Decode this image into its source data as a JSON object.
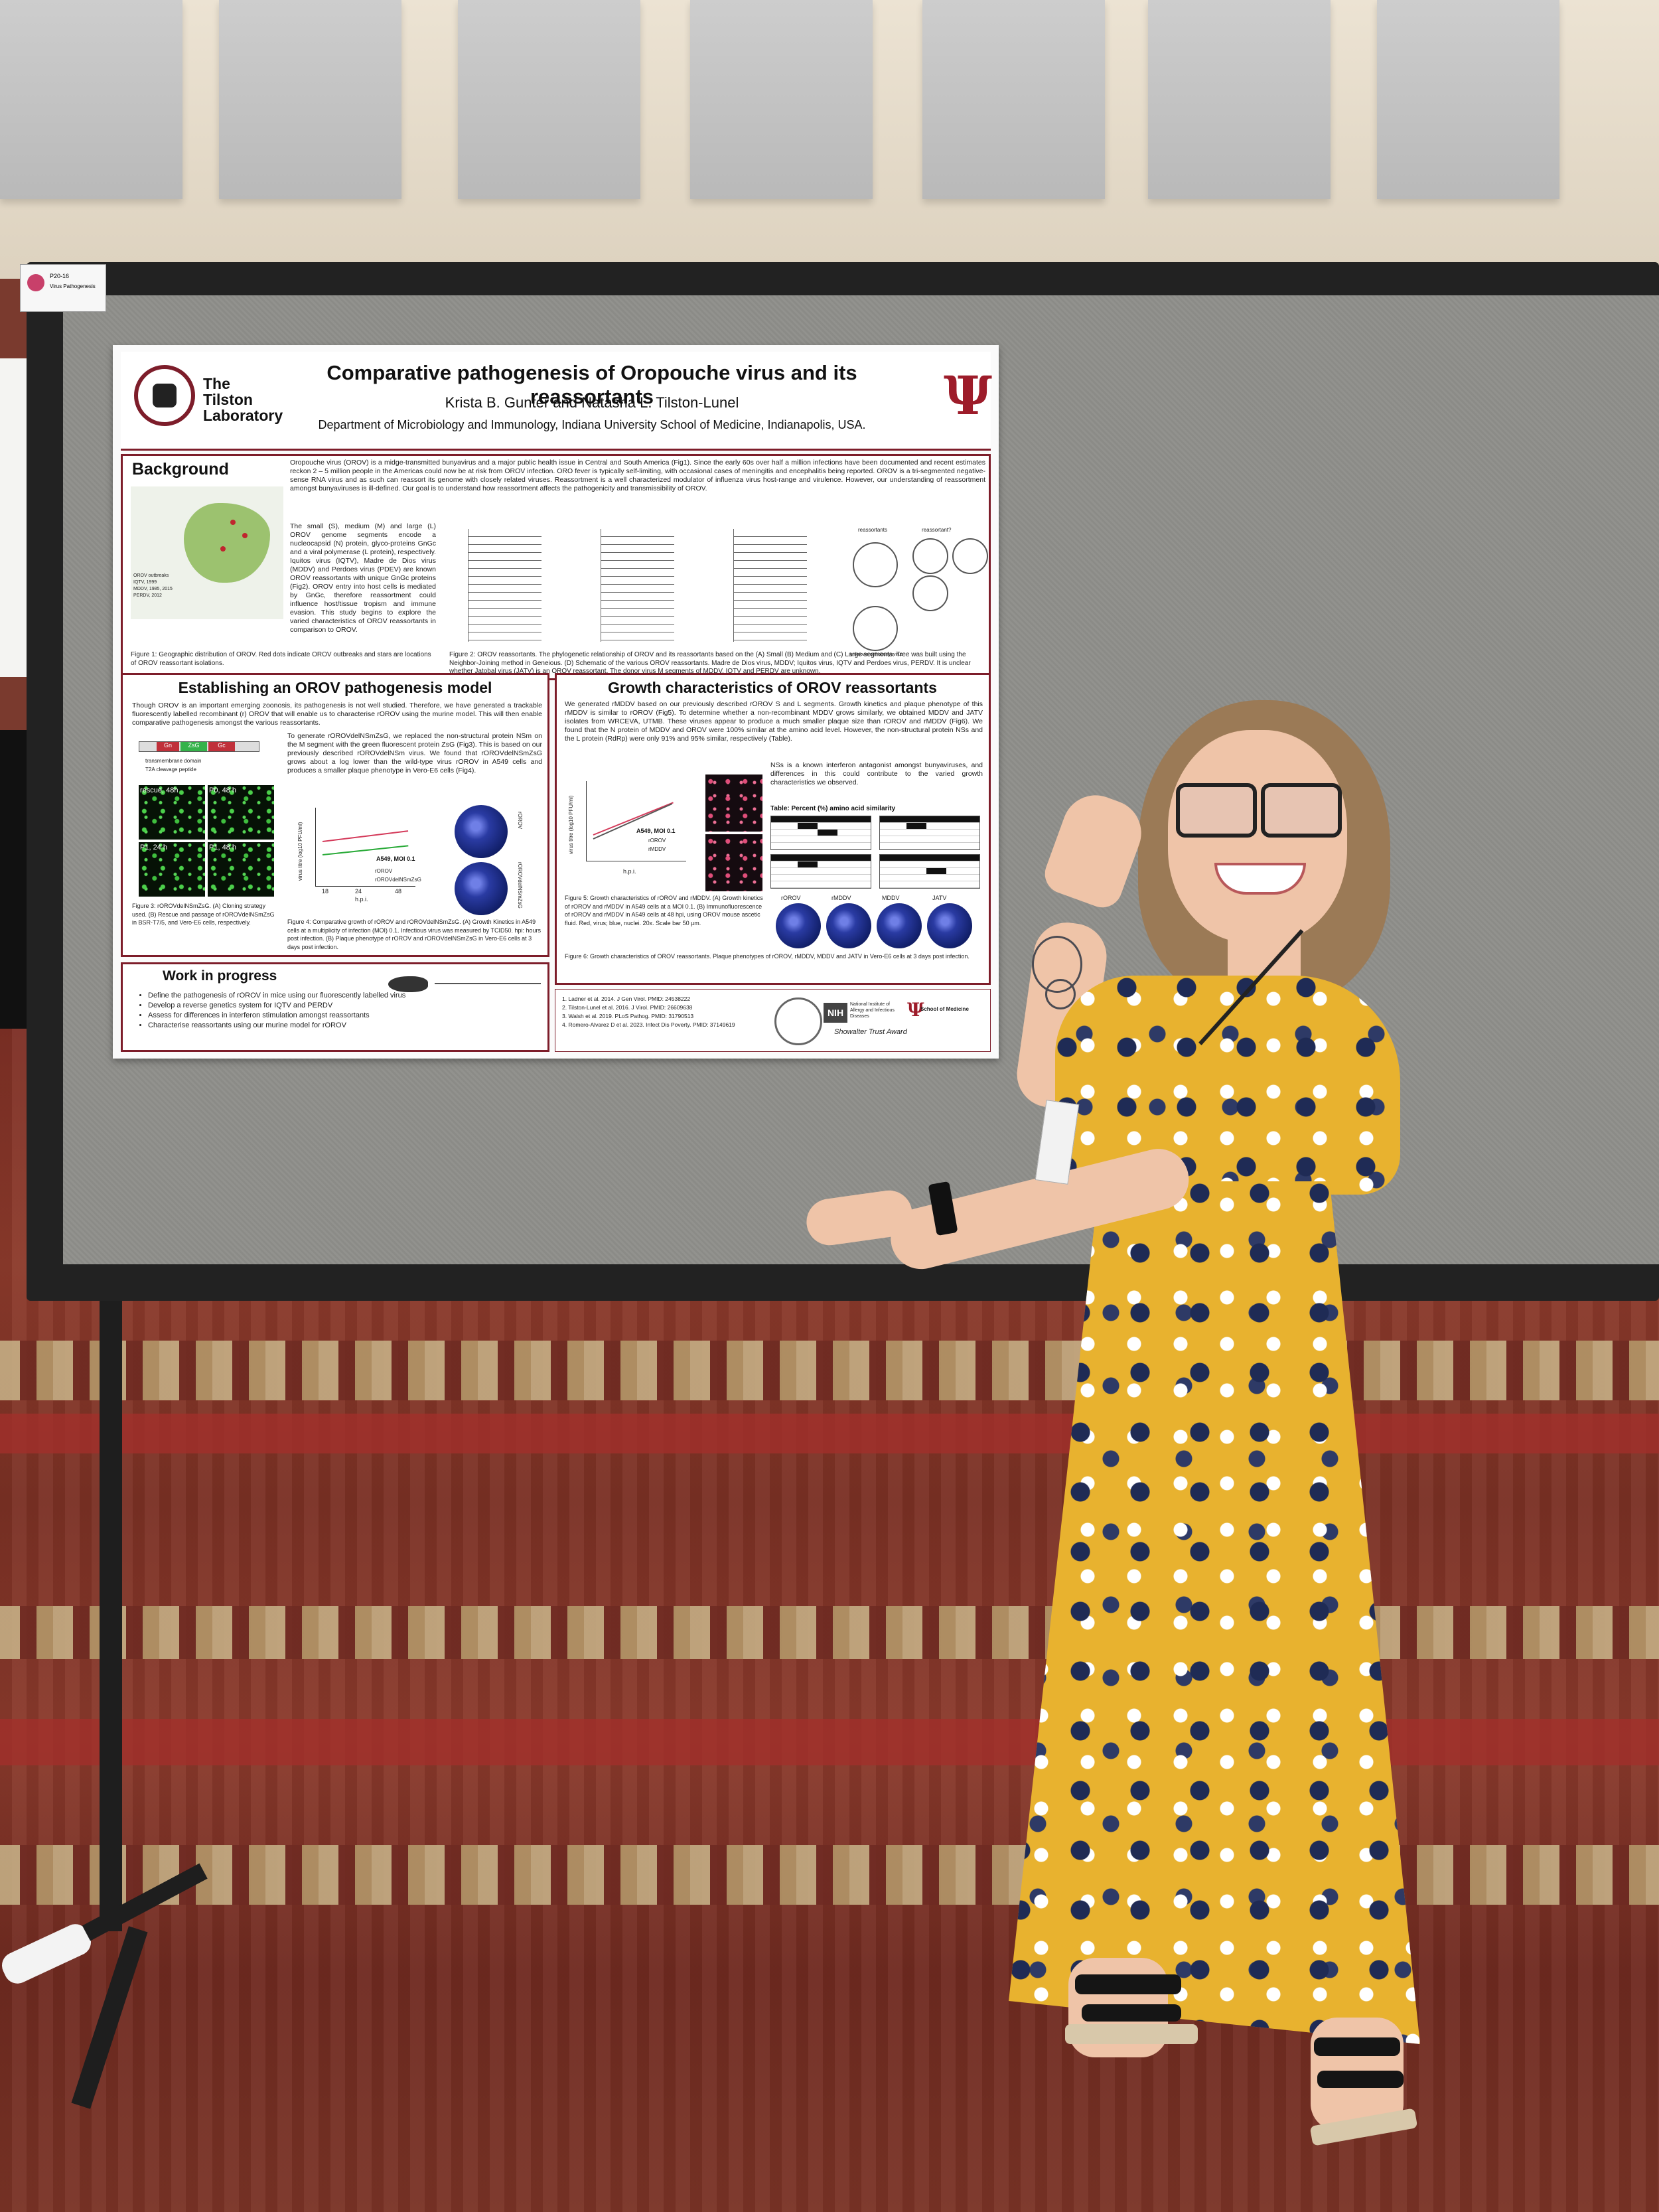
{
  "session_tag": {
    "number": "P20-16",
    "label": "Virus Pathogenesis"
  },
  "poster": {
    "lab_name": "The Tilston Laboratory",
    "title": "Comparative pathogenesis of Oropouche virus and its reassortants",
    "authors": "Krista B. Gunter and Natasha L. Tilston-Lunel",
    "affiliation": "Department of Microbiology and Immunology, Indiana University School of Medicine, Indianapolis, USA.",
    "background": {
      "heading": "Background",
      "text": "Oropouche virus (OROV) is a midge-transmitted bunyavirus and a major public health issue in Central and South America (Fig1). Since the early 60s over half a million infections have been documented and recent estimates reckon 2 – 5 million people in the Americas could now be at risk from OROV infection. ORO fever is typically self-limiting, with occasional cases of meningitis and encephalitis being reported. OROV is a tri-segmented negative-sense RNA virus and as such can reassort its genome with closely related viruses. Reassortment is a well characterized modulator of influenza virus host-range and virulence. However, our understanding of reassortment amongst bunyaviruses is ill-defined. Our goal is to understand how reassortment affects the pathogenicity and transmissibility of OROV.",
      "text2": "The small (S), medium (M) and large (L) OROV genome segments encode a nucleocapsid (N) protein, glyco-proteins GnGc and a viral polymerase (L protein), respectively. Iquitos virus (IQTV), Madre de Dios virus (MDDV) and Perdoes virus (PDEV) are known OROV reassortants with unique GnGc proteins (Fig2). OROV entry into host cells is mediated by GnGc, therefore reassortment could influence host/tissue tropism and immune evasion. This study begins to explore the varied characteristics of OROV reassortants in comparison to OROV.",
      "fig1_caption": "Figure 1: Geographic distribution of OROV. Red dots indicate OROV outbreaks and stars are locations of OROV reassortant isolations.",
      "fig2_caption": "Figure 2: OROV reassortants. The phylogenetic relationship of OROV and its reassortants based on the (A) Small (B) Medium and (C) Large segments. Tree was built using the Neighbor-Joining method in Geneious. (D) Schematic of the various OROV reassortants. Madre de Dios virus, MDDV; Iquitos virus, IQTV and Perdoes virus, PERDV. It is unclear whether Jatobal virus (JATV) is an OROV reassortant. The donor virus M segments of MDDV, IQTV and PERDV are unknown.",
      "legend": [
        "OROV outbreaks",
        "IQTV, 1999",
        "MDDV, 1985, 2015",
        "PERDV, 2012"
      ],
      "fig2_labels": [
        "reassortants",
        "reassortant?",
        "unknown orthobunyavirus"
      ]
    },
    "model": {
      "heading": "Establishing an OROV pathogenesis model",
      "text": "Though OROV is an important emerging zoonosis, its pathogenesis is not well studied. Therefore, we have generated a trackable fluorescently labelled recombinant (r) OROV that will enable us to characterise rOROV using the murine model. This will then enable comparative pathogenesis amongst the various reassortants.",
      "text2": "To generate rOROVdelNSmZsG, we replaced the non-structural protein NSm on the M segment with the green fluorescent protein ZsG (Fig3). This is based on our previously described rOROVdelNSm virus. We found that rOROVdelNSmZsG grows about a log lower than the wild-type virus rOROV in A549 cells and produces a smaller plaque phenotype in Vero-E6 cells (Fig4).",
      "segment_labels": [
        "Gn",
        "ZsG",
        "Gc"
      ],
      "key": [
        "transmembrane domain",
        "T2A cleavage peptide"
      ],
      "panels": [
        "rescue, 48h",
        "P0, 48 h",
        "P1, 24 h",
        "P1, 48 h"
      ],
      "fig3_caption": "Figure 3: rOROVdelNSmZsG. (A) Cloning strategy used. (B) Rescue and passage of rOROVdelNSmZsG in BSR-T7/5, and Vero-E6 cells, respectively.",
      "fig4_caption": "Figure 4: Comparative growth of rOROV and rOROVdelNSmZsG. (A) Growth Kinetics in A549 cells at a multiplicity of infection (MOI) 0.1. Infectious virus was measured by TCID50. hpi: hours post infection. (B) Plaque phenotype of rOROV and rOROVdelNSmZsG in Vero-E6 cells at 3 days post infection.",
      "graph_title": "A549, MOI 0.1",
      "graph_ylabel": "virus titre (log10 PFU/ml)",
      "graph_xlabel": "h.p.i.",
      "graph_x": [
        "18",
        "24",
        "48"
      ],
      "series": [
        "rOROV",
        "rOROVdelNSmZsG"
      ],
      "plaque_labels": [
        "rOROV",
        "rOROVdelNSmZsG"
      ]
    },
    "growth": {
      "heading": "Growth characteristics of OROV reassortants",
      "text": "We generated rMDDV based on our previously described rOROV S and L segments. Growth kinetics and plaque phenotype of this rMDDV is similar to rOROV (Fig5). To determine whether a non-recombinant MDDV grows similarly, we obtained MDDV and JATV isolates from WRCEVA, UTMB. These viruses appear to produce a much smaller plaque size than rOROV and rMDDV (Fig6). We found that the N protein of MDDV and OROV were 100% similar at the amino acid level. However, the non-structural protein NSs and the L protein (RdRp) were only 91% and 95% similar, respectively (Table).",
      "text2": "NSs is a known interferon antagonist amongst bunyaviruses, and differences in this could contribute to the varied growth characteristics we observed.",
      "graph_title": "A549, MOI 0.1",
      "graph_ylabel": "virus titre (log10 PFU/ml)",
      "graph_xlabel": "h.p.i.",
      "series": [
        "rOROV",
        "rMDDV"
      ],
      "table_title": "Table: Percent (%) amino acid similarity",
      "fig5_caption": "Figure 5: Growth characteristics of rOROV and rMDDV. (A) Growth kinetics of rOROV and rMDDV in A549 cells at a MOI 0.1. (B) Immunofluorescence of rOROV and rMDDV in A549 cells at 48 hpi, using OROV mouse ascetic fluid. Red, virus; blue, nuclei. 20x. Scale bar 50 µm.",
      "fig6_caption": "Figure 6: Growth characteristics of OROV reassortants. Plaque phenotypes of rOROV, rMDDV, MDDV and JATV in Vero-E6 cells at 3 days post infection.",
      "plaque_labels": [
        "rOROV",
        "rMDDV",
        "MDDV",
        "JATV"
      ]
    },
    "work": {
      "heading": "Work in progress",
      "items": [
        "Define the pathogenesis of rOROV in mice using our fluorescently labelled virus",
        "Develop a reverse genetics system for IQTV and PERDV",
        "Assess for differences in interferon stimulation amongst reassortants",
        "Characterise reassortants using our murine model for rOROV"
      ]
    },
    "references": [
      "1. Ladner et al. 2014. J Gen Virol. PMID: 24538222",
      "2. Tilston-Lunel et al. 2016. J Virol. PMID: 26609638",
      "3. Walsh et al. 2019. PLoS Pathog. PMID: 31790513",
      "4. Romero-Alvarez D et al. 2023. Infect Dis Poverty. PMID: 37149619"
    ],
    "funders": [
      "National Institute of Allergy and Infectious Diseases",
      "School of Medicine",
      "Showalter Trust Award"
    ]
  },
  "colors": {
    "iu_crimson": "#9d1c2a",
    "board_gray": "#8f8f8b",
    "dress_yellow": "#e8b22f"
  }
}
